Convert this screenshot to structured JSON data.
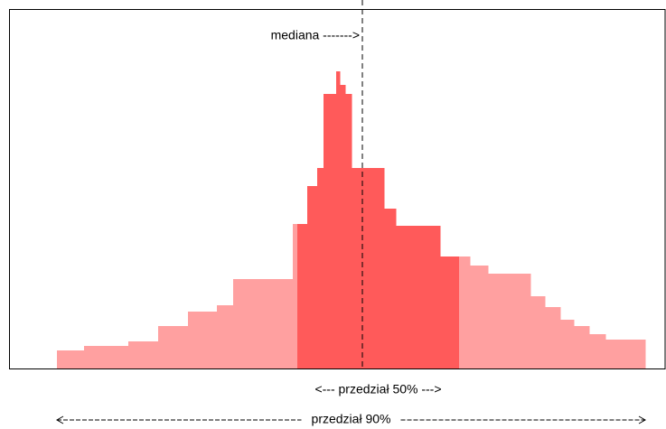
{
  "chart_data": {
    "type": "histogram",
    "bins": [
      63,
      93,
      142,
      175,
      208,
      240,
      258,
      324,
      329,
      340,
      351,
      358,
      372,
      376,
      382,
      389,
      425,
      438,
      487,
      508,
      520,
      540,
      587,
      603,
      620,
      635,
      652,
      670,
      714
    ],
    "values": [
      20,
      25,
      30,
      47,
      63,
      70,
      99,
      160,
      160,
      202,
      222,
      304,
      329,
      314,
      304,
      222,
      177,
      158,
      124,
      124,
      114,
      105,
      80,
      68,
      54,
      47,
      38,
      32
    ],
    "xlim": [
      10,
      737
    ],
    "ylim": [
      0,
      398
    ],
    "color": "#ffa0a0",
    "highlight_color": "#ff5a5a",
    "median": 401,
    "median_label": "mediana ------->",
    "interval50": [
      329,
      508
    ],
    "interval50_label": "<--- przedział 50% --->",
    "interval90": [
      63,
      714
    ],
    "interval90_label": "przedział 90%"
  }
}
